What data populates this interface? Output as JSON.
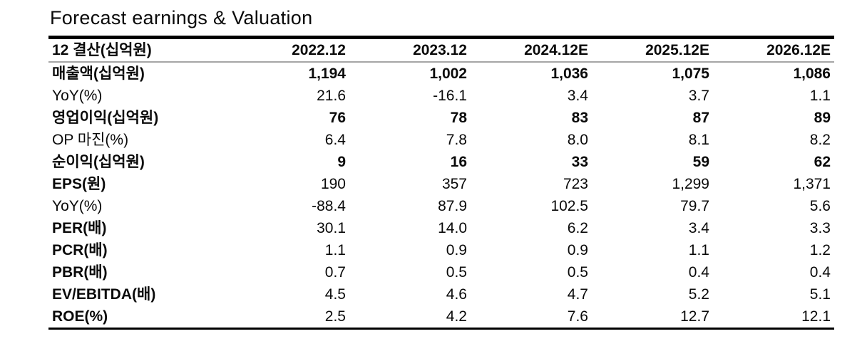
{
  "title": "Forecast earnings & Valuation",
  "colors": {
    "border": "#000000",
    "hline": "#a6a6a6",
    "text": "#0a0a0a"
  },
  "table": {
    "header": [
      "12 결산(십억원)",
      "2022.12",
      "2023.12",
      "2024.12E",
      "2025.12E",
      "2026.12E"
    ],
    "rows": [
      {
        "label": "매출액(십억원)",
        "label_bold": true,
        "values_bold": true,
        "values": [
          "1,194",
          "1,002",
          "1,036",
          "1,075",
          "1,086"
        ]
      },
      {
        "label": "YoY(%)",
        "label_bold": false,
        "values_bold": false,
        "values": [
          "21.6",
          "-16.1",
          "3.4",
          "3.7",
          "1.1"
        ]
      },
      {
        "label": "영업이익(십억원)",
        "label_bold": true,
        "values_bold": true,
        "values": [
          "76",
          "78",
          "83",
          "87",
          "89"
        ]
      },
      {
        "label": "OP 마진(%)",
        "label_bold": false,
        "values_bold": false,
        "values": [
          "6.4",
          "7.8",
          "8.0",
          "8.1",
          "8.2"
        ]
      },
      {
        "label": "순이익(십억원)",
        "label_bold": true,
        "values_bold": true,
        "values": [
          "9",
          "16",
          "33",
          "59",
          "62"
        ]
      },
      {
        "label": "EPS(원)",
        "label_bold": true,
        "values_bold": false,
        "values": [
          "190",
          "357",
          "723",
          "1,299",
          "1,371"
        ]
      },
      {
        "label": "YoY(%)",
        "label_bold": false,
        "values_bold": false,
        "values": [
          "-88.4",
          "87.9",
          "102.5",
          "79.7",
          "5.6"
        ]
      },
      {
        "label": "PER(배)",
        "label_bold": true,
        "values_bold": false,
        "values": [
          "30.1",
          "14.0",
          "6.2",
          "3.4",
          "3.3"
        ]
      },
      {
        "label": "PCR(배)",
        "label_bold": true,
        "values_bold": false,
        "values": [
          "1.1",
          "0.9",
          "0.9",
          "1.1",
          "1.2"
        ]
      },
      {
        "label": "PBR(배)",
        "label_bold": true,
        "values_bold": false,
        "values": [
          "0.7",
          "0.5",
          "0.5",
          "0.4",
          "0.4"
        ]
      },
      {
        "label": "EV/EBITDA(배)",
        "label_bold": true,
        "values_bold": false,
        "values": [
          "4.5",
          "4.6",
          "4.7",
          "5.2",
          "5.1"
        ]
      },
      {
        "label": "ROE(%)",
        "label_bold": true,
        "values_bold": false,
        "values": [
          "2.5",
          "4.2",
          "7.6",
          "12.7",
          "12.1"
        ]
      }
    ]
  }
}
